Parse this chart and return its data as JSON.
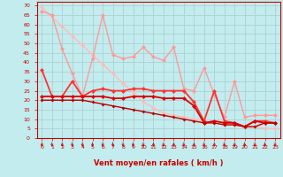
{
  "xlabel": "Vent moyen/en rafales ( km/h )",
  "bg_color": "#c2ecee",
  "grid_color": "#aacccc",
  "x": [
    0,
    1,
    2,
    3,
    4,
    5,
    6,
    7,
    8,
    9,
    10,
    11,
    12,
    13,
    14,
    15,
    16,
    17,
    18,
    19,
    20,
    21,
    22,
    23
  ],
  "lines": [
    {
      "y": [
        69,
        64,
        59,
        54,
        49,
        44,
        39,
        34,
        29,
        24,
        19,
        16,
        13,
        12,
        11,
        10,
        9,
        8,
        7,
        7,
        6,
        6,
        5,
        5
      ],
      "color": "#ffbbbb",
      "lw": 1.0,
      "ms": 2.5
    },
    {
      "y": [
        67,
        65,
        47,
        34,
        22,
        42,
        65,
        44,
        42,
        43,
        48,
        43,
        41,
        48,
        26,
        25,
        37,
        23,
        11,
        30,
        11,
        12,
        12,
        12
      ],
      "color": "#ff9999",
      "lw": 1.0,
      "ms": 2.5
    },
    {
      "y": [
        36,
        22,
        22,
        30,
        22,
        25,
        26,
        25,
        25,
        26,
        26,
        25,
        25,
        25,
        25,
        19,
        9,
        25,
        9,
        8,
        6,
        9,
        9,
        8
      ],
      "color": "#ff3333",
      "lw": 1.3,
      "ms": 2.5
    },
    {
      "y": [
        22,
        22,
        22,
        22,
        22,
        22,
        22,
        21,
        21,
        22,
        22,
        22,
        21,
        21,
        21,
        17,
        8,
        9,
        8,
        8,
        6,
        9,
        8,
        8
      ],
      "color": "#dd0000",
      "lw": 1.3,
      "ms": 2.5
    },
    {
      "y": [
        20,
        20,
        20,
        20,
        20,
        19,
        18,
        17,
        16,
        15,
        14,
        13,
        12,
        11,
        10,
        9,
        8,
        8,
        7,
        7,
        6,
        6,
        8,
        8
      ],
      "color": "#bb0000",
      "lw": 1.0,
      "ms": 2.0
    }
  ],
  "ylim": [
    0,
    72
  ],
  "xlim": [
    -0.5,
    23.5
  ],
  "yticks": [
    0,
    5,
    10,
    15,
    20,
    25,
    30,
    35,
    40,
    45,
    50,
    55,
    60,
    65,
    70
  ],
  "xticks": [
    0,
    1,
    2,
    3,
    4,
    5,
    6,
    7,
    8,
    9,
    10,
    11,
    12,
    13,
    14,
    15,
    16,
    17,
    18,
    19,
    20,
    21,
    22,
    23
  ]
}
